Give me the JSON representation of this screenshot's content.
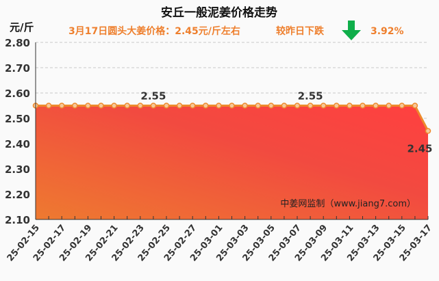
{
  "chart_data": {
    "type": "area",
    "title": "安丘一般泥姜价格走势",
    "subtitle": "3月17日圆头大姜价格：2.45元/斤左右",
    "change_label": "较昨日下跌",
    "change_value": "3.92%",
    "change_direction": "down",
    "ylabel": "元/斤",
    "ylim": [
      2.1,
      2.8
    ],
    "yticks": [
      "2.80",
      "2.70",
      "2.60",
      "2.50",
      "2.40",
      "2.30",
      "2.20",
      "2.10"
    ],
    "xtick_labels": [
      "25-02-15",
      "25-02-17",
      "25-02-19",
      "25-02-21",
      "25-02-23",
      "25-02-25",
      "25-02-27",
      "25-03-01",
      "25-03-03",
      "25-03-05",
      "25-03-07",
      "25-03-09",
      "25-03-11",
      "25-03-13",
      "25-03-15",
      "25-03-17"
    ],
    "values": [
      2.55,
      2.55,
      2.55,
      2.55,
      2.55,
      2.55,
      2.55,
      2.55,
      2.55,
      2.55,
      2.55,
      2.55,
      2.55,
      2.55,
      2.55,
      2.55,
      2.55,
      2.55,
      2.55,
      2.55,
      2.55,
      2.55,
      2.55,
      2.55,
      2.55,
      2.55,
      2.55,
      2.55,
      2.55,
      2.55,
      2.45
    ],
    "data_labels": [
      {
        "index": 9,
        "text": "2.55"
      },
      {
        "index": 21,
        "text": "2.55"
      },
      {
        "index": 30,
        "text": "2.45"
      }
    ],
    "watermark": "中姜网监制（www.jiang7.com）",
    "grid": true,
    "colors": {
      "line": "#ee8a2c",
      "fill_top": "#f04545",
      "fill_bottom": "#ee7a30",
      "arrow": "#0fae4a",
      "subtitle": "#ee7f2d"
    }
  }
}
